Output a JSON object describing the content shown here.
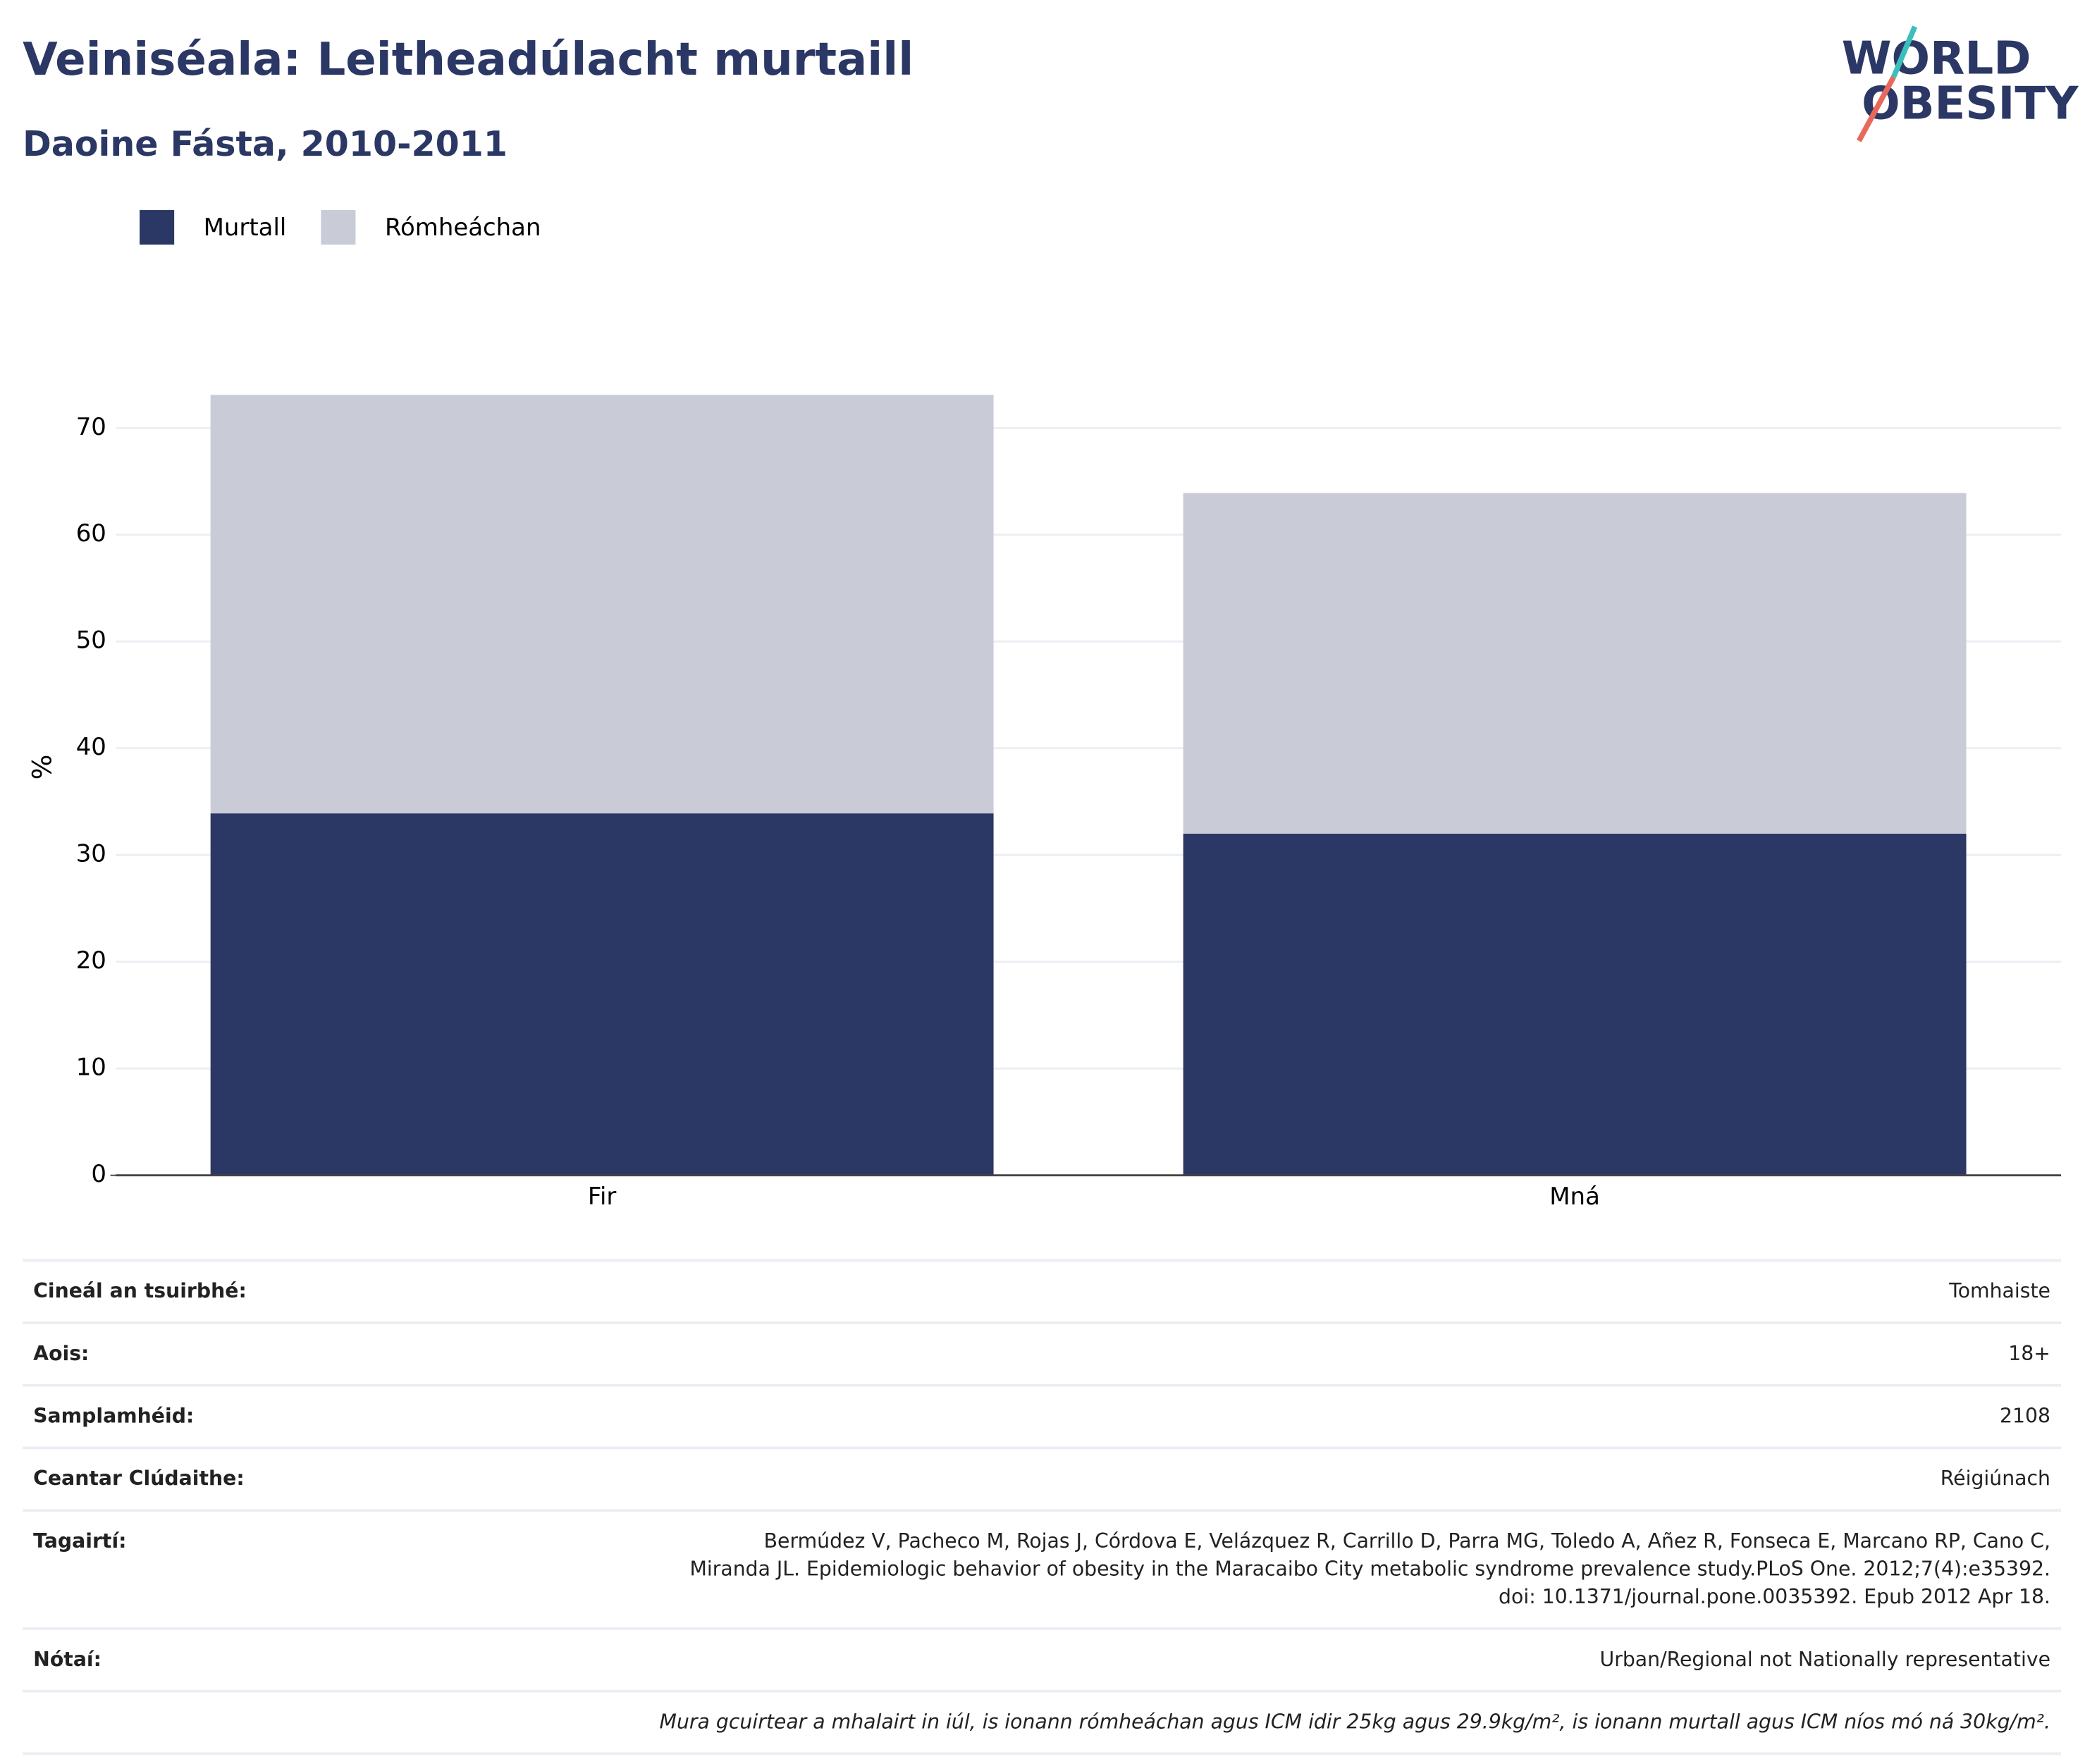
{
  "chart_data": {
    "type": "stacked-bar",
    "title": "Veiniséala: Leitheadúlacht murtaill",
    "subtitle": "Daoine Fásta, 2010-2011",
    "y_label": "%",
    "categories": [
      "Fir",
      "Mná"
    ],
    "series": [
      {
        "name": "Murtall",
        "color": "#2b3764",
        "values": [
          33.9,
          32.0
        ]
      },
      {
        "name": "Rómheáchan",
        "color": "#c9ccd7",
        "values": [
          39.2,
          31.9
        ]
      }
    ],
    "ylim": [
      0,
      73.1
    ],
    "yticks": [
      0,
      10,
      20,
      30,
      40,
      50,
      60,
      70
    ],
    "grid": true
  },
  "logo": {
    "line1": "WORLD",
    "line2": "OBESITY"
  },
  "table": {
    "rows": [
      {
        "label": "Cineál an tsuirbhé:",
        "value": "Tomhaiste"
      },
      {
        "label": "Aois:",
        "value": "18+"
      },
      {
        "label": "Samplamhéid:",
        "value": "2108"
      },
      {
        "label": "Ceantar Clúdaithe:",
        "value": "Réigiúnach"
      },
      {
        "label": "Tagairtí:",
        "value": [
          "Bermúdez V, Pacheco M, Rojas J, Córdova E, Velázquez R, Carrillo D, Parra MG, Toledo A, Añez R, Fonseca E, Marcano RP, Cano C,",
          "Miranda JL. Epidemiologic behavior of obesity in the Maracaibo City metabolic syndrome prevalence study.PLoS One. 2012;7(4):e35392.",
          "doi: 10.1371/journal.pone.0035392. Epub 2012 Apr 18."
        ]
      },
      {
        "label": "Nótaí:",
        "value": "Urban/Regional not Nationally representative"
      }
    ],
    "note": "Mura gcuirtear a mhalairt in iúl, is ionann rómheáchan agus ICM idir 25kg agus 29.9kg/m², is ionann murtall agus ICM níos mó ná 30kg/m²."
  }
}
